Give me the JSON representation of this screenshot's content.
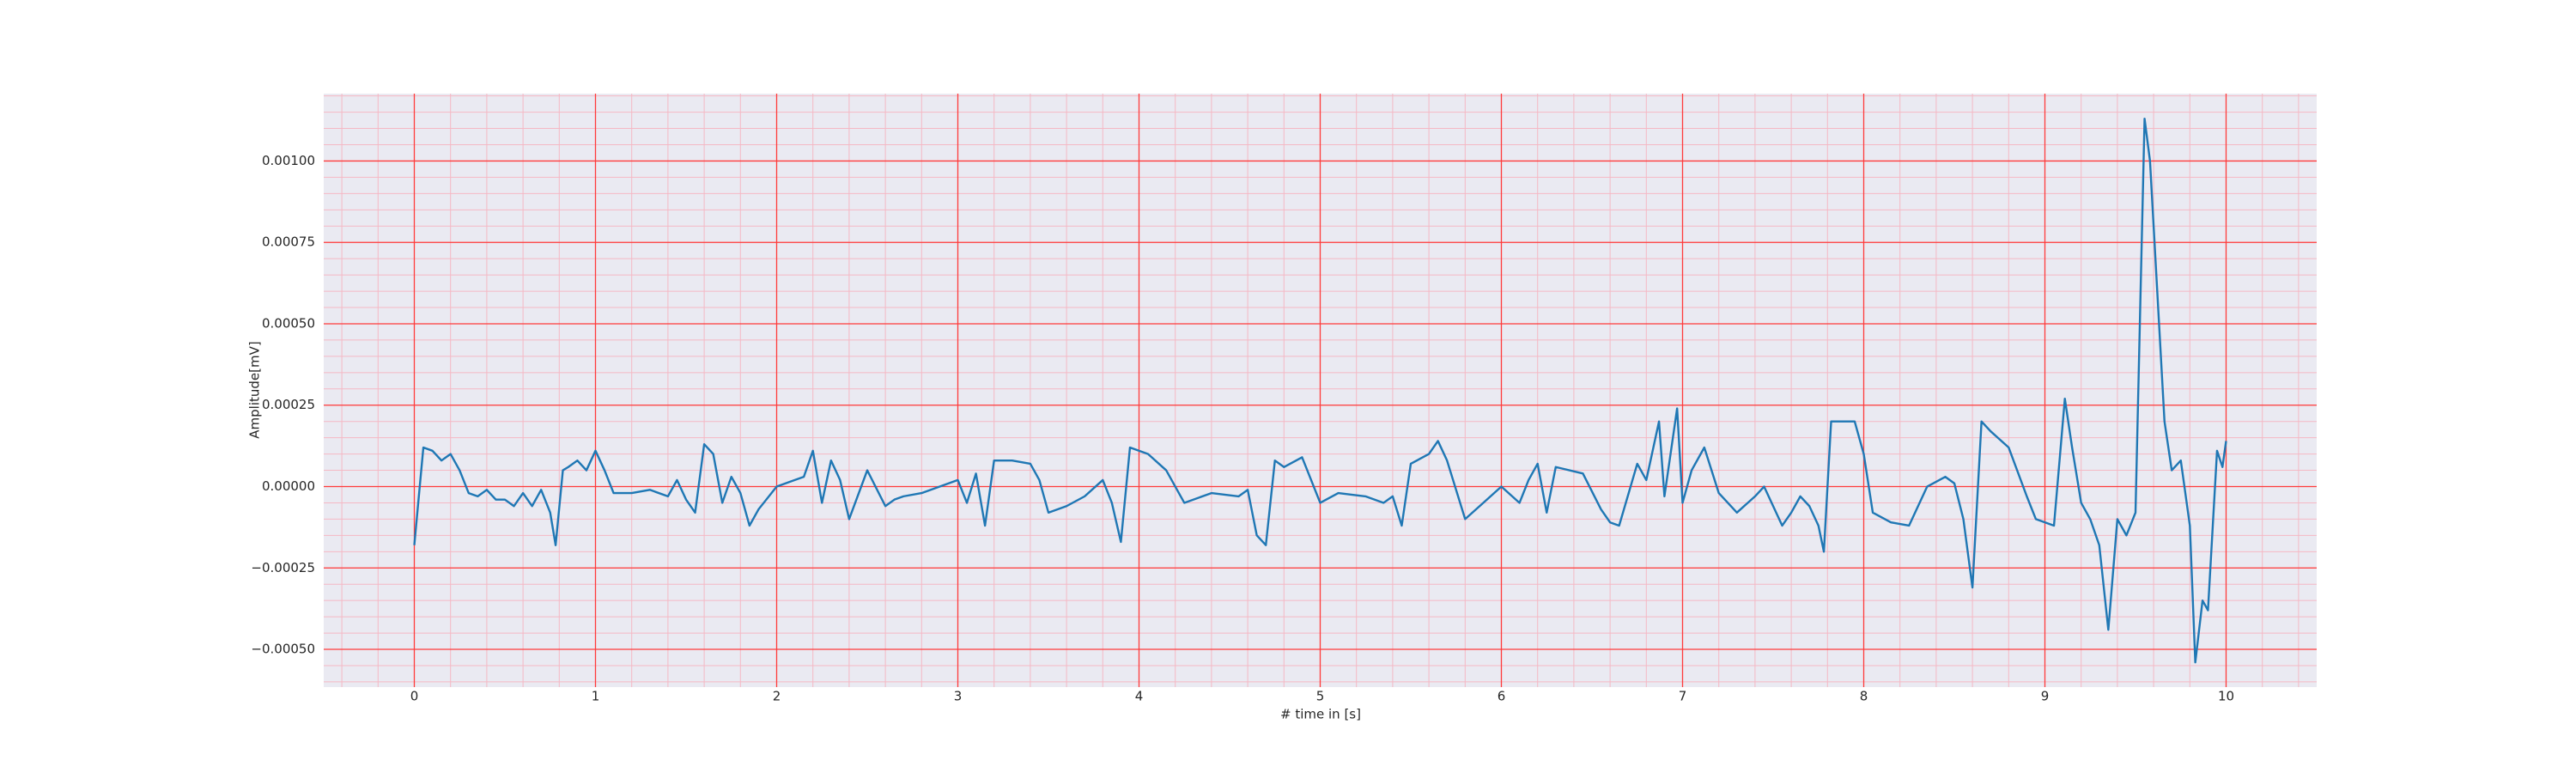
{
  "chart_data": {
    "type": "line",
    "xlabel": "# time in [s]",
    "ylabel": "Amplitude[mV]",
    "xlim": [
      -0.5,
      10.5
    ],
    "ylim": [
      -0.000616,
      0.001207
    ],
    "xticks": [
      0,
      1,
      2,
      3,
      4,
      5,
      6,
      7,
      8,
      9,
      10
    ],
    "yticks": [
      {
        "value": -0.0005,
        "label": "−0.00050"
      },
      {
        "value": -0.00025,
        "label": "−0.00025"
      },
      {
        "value": 0,
        "label": "0.00000"
      },
      {
        "value": 0.00025,
        "label": "0.00025"
      },
      {
        "value": 0.0005,
        "label": "0.00050"
      },
      {
        "value": 0.00075,
        "label": "0.00075"
      },
      {
        "value": 0.001,
        "label": "0.00100"
      }
    ],
    "grid": true,
    "grid_color": "#ff3b3b",
    "minor_grid": {
      "x": 5,
      "y": 5,
      "color": "#f5b8c4"
    },
    "background": "#eaeaf2",
    "series": [
      {
        "color": "#1f77b4",
        "x": [
          0,
          0.05,
          0.1,
          0.15,
          0.2,
          0.25,
          0.3,
          0.35,
          0.4,
          0.45,
          0.5,
          0.55,
          0.6,
          0.65,
          0.7,
          0.75,
          0.78,
          0.82,
          0.85,
          0.9,
          0.95,
          1.0,
          1.05,
          1.1,
          1.2,
          1.3,
          1.4,
          1.45,
          1.5,
          1.55,
          1.6,
          1.65,
          1.7,
          1.75,
          1.8,
          1.85,
          1.9,
          2.0,
          2.1,
          2.15,
          2.2,
          2.25,
          2.3,
          2.35,
          2.4,
          2.5,
          2.6,
          2.65,
          2.7,
          2.8,
          2.9,
          3.0,
          3.05,
          3.1,
          3.15,
          3.2,
          3.3,
          3.4,
          3.45,
          3.5,
          3.6,
          3.7,
          3.8,
          3.85,
          3.9,
          3.95,
          4.05,
          4.15,
          4.25,
          4.4,
          4.55,
          4.6,
          4.65,
          4.7,
          4.75,
          4.8,
          4.9,
          5.0,
          5.1,
          5.25,
          5.35,
          5.4,
          5.45,
          5.5,
          5.6,
          5.65,
          5.7,
          5.8,
          5.9,
          6.0,
          6.1,
          6.15,
          6.2,
          6.25,
          6.3,
          6.45,
          6.55,
          6.6,
          6.65,
          6.75,
          6.8,
          6.87,
          6.9,
          6.97,
          7.0,
          7.05,
          7.12,
          7.2,
          7.3,
          7.4,
          7.45,
          7.55,
          7.6,
          7.65,
          7.7,
          7.75,
          7.78,
          7.82,
          7.9,
          7.95,
          8.0,
          8.05,
          8.15,
          8.25,
          8.35,
          8.45,
          8.5,
          8.55,
          8.6,
          8.65,
          8.7,
          8.8,
          8.9,
          8.95,
          9.05,
          9.11,
          9.15,
          9.2,
          9.25,
          9.3,
          9.35,
          9.4,
          9.45,
          9.5,
          9.55,
          9.58,
          9.62,
          9.66,
          9.7,
          9.75,
          9.8,
          9.83,
          9.87,
          9.9,
          9.95,
          9.98,
          10.0
        ],
        "values": [
          -0.00018,
          0.00012,
          0.00011,
          8e-05,
          0.0001,
          5e-05,
          -2e-05,
          -3e-05,
          -1e-05,
          -4e-05,
          -4e-05,
          -6e-05,
          -2e-05,
          -6e-05,
          -1e-05,
          -8e-05,
          -0.00018,
          5e-05,
          6e-05,
          8e-05,
          5e-05,
          0.00011,
          5e-05,
          -2e-05,
          -2e-05,
          -1e-05,
          -3e-05,
          2e-05,
          -4e-05,
          -8e-05,
          0.00013,
          0.0001,
          -5e-05,
          3e-05,
          -2e-05,
          -0.00012,
          -7e-05,
          0,
          2e-05,
          3e-05,
          0.00011,
          -5e-05,
          8e-05,
          2e-05,
          -0.0001,
          5e-05,
          -6e-05,
          -4e-05,
          -3e-05,
          -2e-05,
          0,
          2e-05,
          -5e-05,
          4e-05,
          -0.00012,
          8e-05,
          8e-05,
          7e-05,
          2e-05,
          -8e-05,
          -6e-05,
          -3e-05,
          2e-05,
          -5e-05,
          -0.00017,
          0.00012,
          0.0001,
          5e-05,
          -5e-05,
          -2e-05,
          -3e-05,
          -1e-05,
          -0.00015,
          -0.00018,
          8e-05,
          6e-05,
          9e-05,
          -5e-05,
          -2e-05,
          -3e-05,
          -5e-05,
          -3e-05,
          -0.00012,
          7e-05,
          0.0001,
          0.00014,
          8e-05,
          -0.0001,
          -5e-05,
          0,
          -5e-05,
          2e-05,
          7e-05,
          -8e-05,
          6e-05,
          4e-05,
          -7e-05,
          -0.00011,
          -0.00012,
          7e-05,
          2e-05,
          0.0002,
          -3e-05,
          0.00024,
          -5e-05,
          5e-05,
          0.00012,
          -2e-05,
          -8e-05,
          -3e-05,
          0,
          -0.00012,
          -8e-05,
          -3e-05,
          -6e-05,
          -0.00012,
          -0.0002,
          0.0002,
          0.0002,
          0.0002,
          0.0001,
          -8e-05,
          -0.00011,
          -0.00012,
          0,
          3e-05,
          1e-05,
          -0.0001,
          -0.00031,
          0.0002,
          0.00017,
          0.00012,
          -3e-05,
          -0.0001,
          -0.00012,
          0.00027,
          0.00012,
          -5e-05,
          -0.0001,
          -0.00018,
          -0.00044,
          -0.0001,
          -0.00015,
          -8e-05,
          0.00113,
          0.001,
          0.0006,
          0.0002,
          5e-05,
          8e-05,
          -0.00012,
          -0.00054,
          -0.00035,
          -0.00038,
          0.00011,
          6e-05,
          0.00014
        ]
      }
    ]
  }
}
